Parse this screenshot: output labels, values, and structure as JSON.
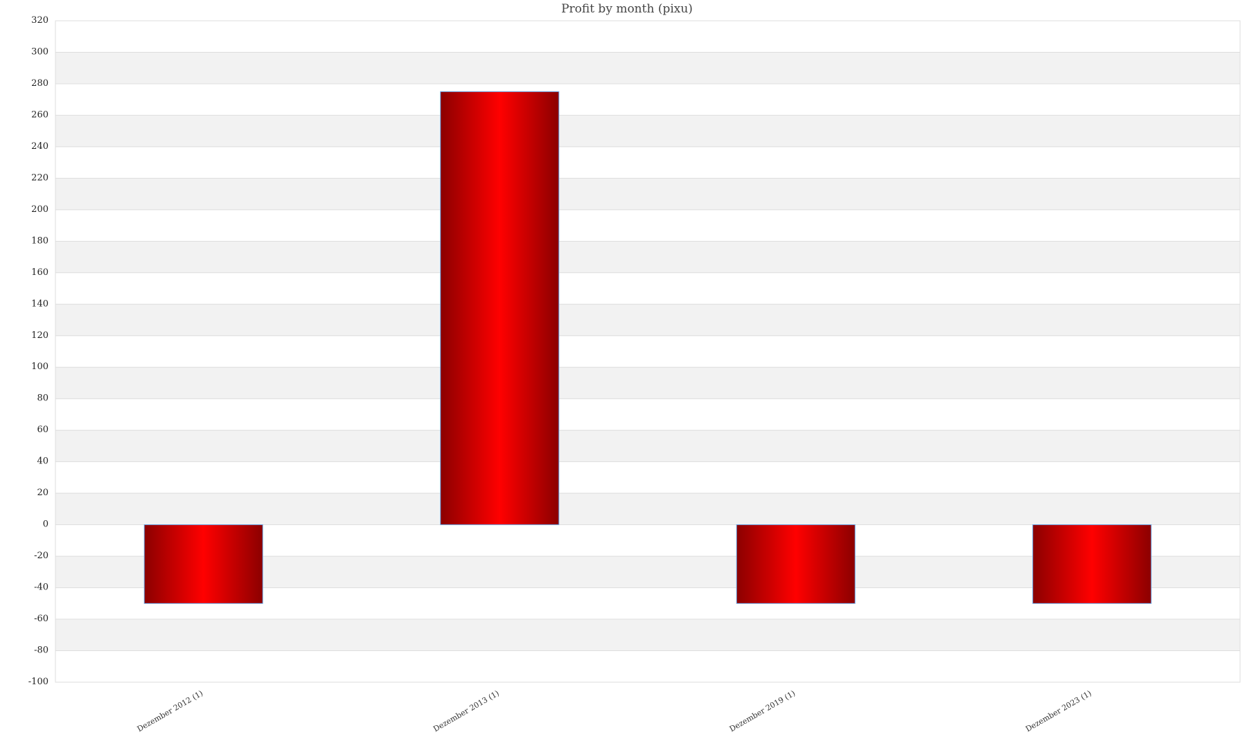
{
  "chart_data": {
    "type": "bar",
    "title": "Profit by month  (pixu)",
    "xlabel": "",
    "ylabel": "",
    "categories": [
      "Dezember 2012 (1)",
      "Dezember 2013 (1)",
      "Dezember 2019 (1)",
      "Dezember 2023 (1)"
    ],
    "values": [
      -50,
      275,
      -50,
      -50
    ],
    "ylim": [
      -100,
      320
    ],
    "yticks": [
      320,
      300,
      280,
      260,
      240,
      220,
      200,
      180,
      160,
      140,
      120,
      100,
      80,
      60,
      40,
      20,
      0,
      -20,
      -40,
      -60,
      -80,
      -100
    ],
    "grid": true,
    "legend": "none",
    "colors": {
      "bar_edge": "#8b0000",
      "bar_center": "#ff0000",
      "bar_border": "#6aa8e8",
      "band": "#f2f2f2",
      "grid": "#dddddd"
    }
  }
}
